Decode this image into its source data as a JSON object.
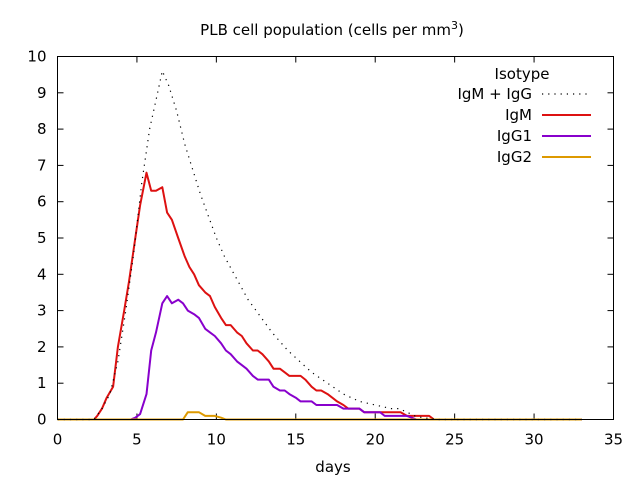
{
  "chart_data": {
    "type": "line",
    "title": "PLB cell population (cells per mm",
    "title_superscript": "3",
    "title_close": ")",
    "xlabel": "days",
    "ylabel": "",
    "xlim": [
      0,
      35
    ],
    "ylim": [
      0,
      10
    ],
    "xticks": [
      0,
      5,
      10,
      15,
      20,
      25,
      30,
      35
    ],
    "yticks": [
      0,
      1,
      2,
      3,
      4,
      5,
      6,
      7,
      8,
      9,
      10
    ],
    "legend_title": "Isotype",
    "legend_position": "top-right",
    "series": [
      {
        "name": "IgM + IgG",
        "color": "#000000",
        "style": "dotted",
        "x": [
          0,
          2.3,
          2.8,
          3.3,
          3.8,
          4.3,
          4.8,
          5.3,
          5.8,
          6.3,
          6.6,
          7.0,
          7.5,
          8.0,
          8.5,
          9.0,
          9.5,
          10.0,
          10.5,
          11.0,
          11.5,
          12.0,
          12.5,
          13.0,
          13.5,
          14.0,
          14.5,
          15.0,
          15.5,
          16.0,
          16.5,
          17.0,
          17.5,
          18.0,
          18.5,
          19.0,
          19.5,
          20.0,
          20.5,
          21.0,
          21.5,
          22.0,
          22.5,
          23.0,
          24.0,
          26.0,
          30.0,
          33.0
        ],
        "y": [
          0,
          0,
          0.3,
          0.7,
          1.6,
          3.0,
          4.6,
          6.5,
          8.0,
          9.0,
          9.6,
          9.2,
          8.5,
          7.6,
          6.9,
          6.2,
          5.6,
          5.0,
          4.5,
          4.1,
          3.7,
          3.3,
          3.0,
          2.7,
          2.4,
          2.15,
          1.9,
          1.7,
          1.5,
          1.3,
          1.15,
          1.0,
          0.85,
          0.7,
          0.6,
          0.5,
          0.45,
          0.4,
          0.35,
          0.3,
          0.3,
          0.2,
          0.1,
          0.05,
          0.0,
          0.0,
          0.0,
          0.0
        ]
      },
      {
        "name": "IgM",
        "color": "#dd1111",
        "style": "solid",
        "x": [
          0,
          2.3,
          2.5,
          2.8,
          3.1,
          3.5,
          3.8,
          4.2,
          4.5,
          4.9,
          5.2,
          5.6,
          5.9,
          6.2,
          6.6,
          6.9,
          7.2,
          7.6,
          8.0,
          8.3,
          8.6,
          8.9,
          9.3,
          9.6,
          9.9,
          10.3,
          10.6,
          10.9,
          11.3,
          11.6,
          11.9,
          12.3,
          12.6,
          12.9,
          13.3,
          13.6,
          14.0,
          14.3,
          14.6,
          15.0,
          15.3,
          15.6,
          16.0,
          16.3,
          16.6,
          17.0,
          17.3,
          17.6,
          18.0,
          18.3,
          18.6,
          19.0,
          19.3,
          19.6,
          20.0,
          20.3,
          20.6,
          21.0,
          21.3,
          21.6,
          22.0,
          22.3,
          22.6,
          23.0,
          23.4,
          23.7,
          24.0,
          26.0,
          30.0,
          33.0
        ],
        "y": [
          0,
          0,
          0.1,
          0.3,
          0.6,
          0.9,
          2.0,
          3.0,
          3.8,
          5.0,
          5.9,
          6.8,
          6.3,
          6.3,
          6.4,
          5.7,
          5.5,
          5.0,
          4.5,
          4.2,
          4.0,
          3.7,
          3.5,
          3.4,
          3.1,
          2.8,
          2.6,
          2.6,
          2.4,
          2.3,
          2.1,
          1.9,
          1.9,
          1.8,
          1.6,
          1.4,
          1.4,
          1.3,
          1.2,
          1.2,
          1.2,
          1.1,
          0.9,
          0.8,
          0.8,
          0.7,
          0.6,
          0.5,
          0.4,
          0.3,
          0.3,
          0.3,
          0.2,
          0.2,
          0.2,
          0.2,
          0.2,
          0.2,
          0.2,
          0.2,
          0.1,
          0.1,
          0.1,
          0.1,
          0.1,
          0.0,
          0.0,
          0.0,
          0.0,
          0.0
        ]
      },
      {
        "name": "IgG1",
        "color": "#8800cc",
        "style": "solid",
        "x": [
          0,
          4.6,
          4.9,
          5.2,
          5.6,
          5.9,
          6.2,
          6.6,
          6.9,
          7.2,
          7.6,
          7.9,
          8.2,
          8.6,
          8.9,
          9.3,
          9.6,
          9.9,
          10.3,
          10.6,
          10.9,
          11.3,
          11.6,
          11.9,
          12.3,
          12.6,
          12.9,
          13.3,
          13.6,
          14.0,
          14.3,
          14.6,
          15.0,
          15.3,
          15.6,
          16.0,
          16.3,
          16.6,
          17.0,
          17.3,
          17.6,
          18.0,
          18.3,
          18.6,
          19.0,
          19.3,
          19.6,
          20.0,
          20.3,
          20.6,
          21.0,
          21.3,
          21.6,
          22.0,
          22.3,
          22.6,
          23.0,
          24.0,
          26.0,
          30.0,
          33.0
        ],
        "y": [
          0,
          0,
          0.05,
          0.15,
          0.7,
          1.9,
          2.4,
          3.2,
          3.4,
          3.2,
          3.3,
          3.2,
          3.0,
          2.9,
          2.8,
          2.5,
          2.4,
          2.3,
          2.1,
          1.9,
          1.8,
          1.6,
          1.5,
          1.4,
          1.2,
          1.1,
          1.1,
          1.1,
          0.9,
          0.8,
          0.8,
          0.7,
          0.6,
          0.5,
          0.5,
          0.5,
          0.4,
          0.4,
          0.4,
          0.4,
          0.4,
          0.3,
          0.3,
          0.3,
          0.3,
          0.2,
          0.2,
          0.2,
          0.2,
          0.1,
          0.1,
          0.1,
          0.1,
          0.1,
          0.05,
          0.0,
          0.0,
          0.0,
          0.0,
          0.0,
          0.0
        ]
      },
      {
        "name": "IgG2",
        "color": "#dd9900",
        "style": "solid",
        "x": [
          0,
          7.9,
          8.2,
          8.6,
          8.9,
          9.3,
          9.6,
          9.9,
          10.3,
          10.6,
          11.0,
          15.0,
          20.0,
          25.0,
          30.0,
          33.0
        ],
        "y": [
          0,
          0,
          0.2,
          0.2,
          0.2,
          0.1,
          0.1,
          0.1,
          0.05,
          0.0,
          0.0,
          0.0,
          0.0,
          0.0,
          0.0,
          0.0
        ]
      }
    ]
  }
}
